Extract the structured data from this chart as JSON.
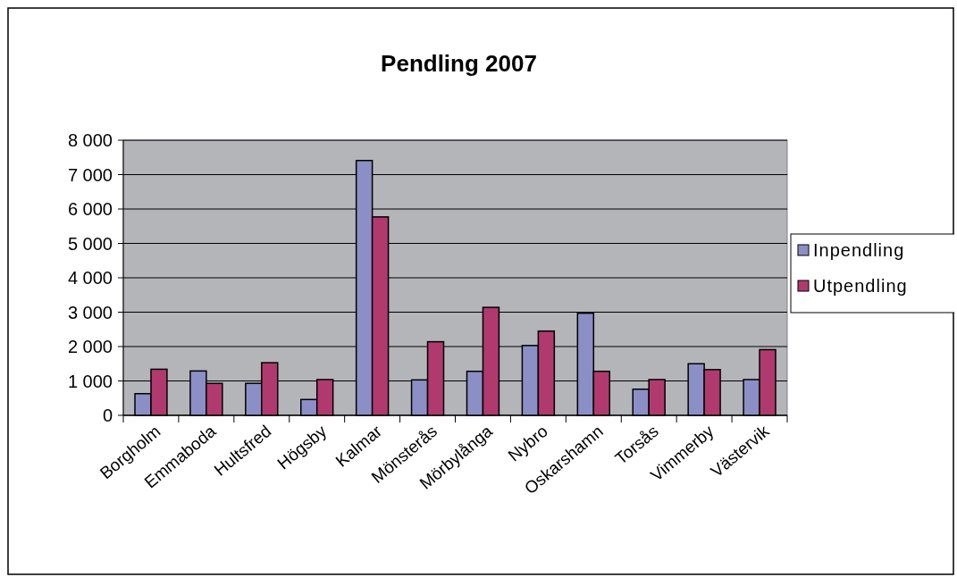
{
  "chart_data": {
    "type": "bar",
    "title": "Pendling 2007",
    "categories": [
      "Borgholm",
      "Emmaboda",
      "Hultsfred",
      "Högsby",
      "Kalmar",
      "Mönsterås",
      "Mörbylånga",
      "Nybro",
      "Oskarshamn",
      "Torsås",
      "Vimmerby",
      "Västervik"
    ],
    "series": [
      {
        "name": "Inpendling",
        "color": "#8b8fc5",
        "values": [
          630,
          1290,
          930,
          460,
          7410,
          1030,
          1280,
          2030,
          2970,
          760,
          1500,
          1040
        ]
      },
      {
        "name": "Utpendling",
        "color": "#b03a6e",
        "values": [
          1340,
          930,
          1530,
          1040,
          5770,
          2140,
          3140,
          2450,
          1280,
          1040,
          1330,
          1910
        ]
      }
    ],
    "ylim": [
      0,
      8000
    ],
    "yticks": [
      {
        "value": 0,
        "label": "0"
      },
      {
        "value": 1000,
        "label": "1 000"
      },
      {
        "value": 2000,
        "label": "2 000"
      },
      {
        "value": 3000,
        "label": "3 000"
      },
      {
        "value": 4000,
        "label": "4 000"
      },
      {
        "value": 5000,
        "label": "5 000"
      },
      {
        "value": 6000,
        "label": "6 000"
      },
      {
        "value": 7000,
        "label": "7 000"
      },
      {
        "value": 8000,
        "label": "8 000"
      }
    ],
    "grid": "y",
    "legend": "right"
  }
}
